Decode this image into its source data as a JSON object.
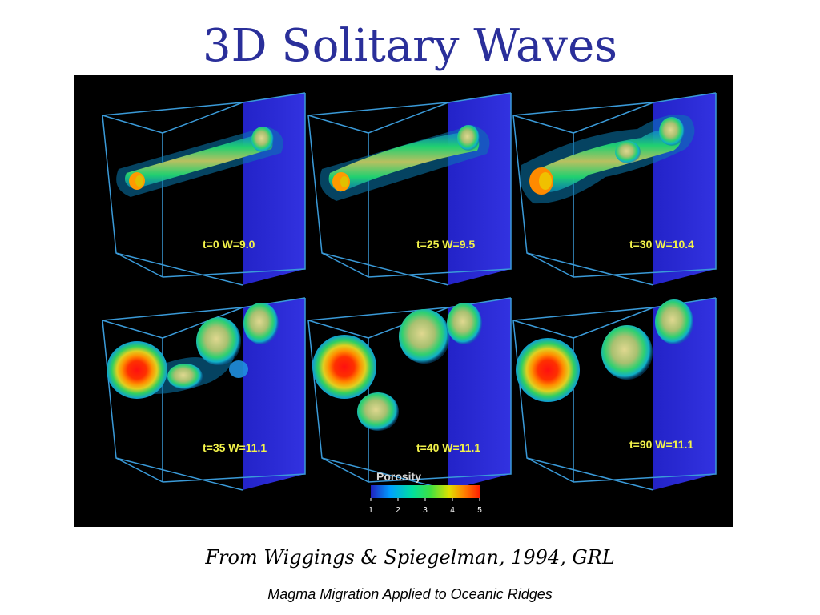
{
  "title": "3D Solitary Waves",
  "figure": {
    "panels": [
      {
        "label": "t=0  W=9.0"
      },
      {
        "label": "t=25  W=9.5"
      },
      {
        "label": "t=30  W=10.4"
      },
      {
        "label": "t=35  W=11.1"
      },
      {
        "label": "t=40  W=11.1"
      },
      {
        "label": "t=90  W=11.1"
      }
    ],
    "legend": {
      "title": "Porosity",
      "ticks": [
        "1",
        "2",
        "3",
        "4",
        "5"
      ],
      "colors": [
        "#2020c0",
        "#00a0ff",
        "#00e0a0",
        "#40e040",
        "#e0e000",
        "#ff8000",
        "#ff2000"
      ]
    },
    "colors": {
      "background": "#000000",
      "box_edges": "#3a9ad8",
      "back_wall": "#2a2ad0",
      "label": "#f2f24a"
    }
  },
  "citation": "From Wiggings & Spiegelman, 1994, GRL",
  "subtitle": "Magma Migration Applied to Oceanic Ridges"
}
